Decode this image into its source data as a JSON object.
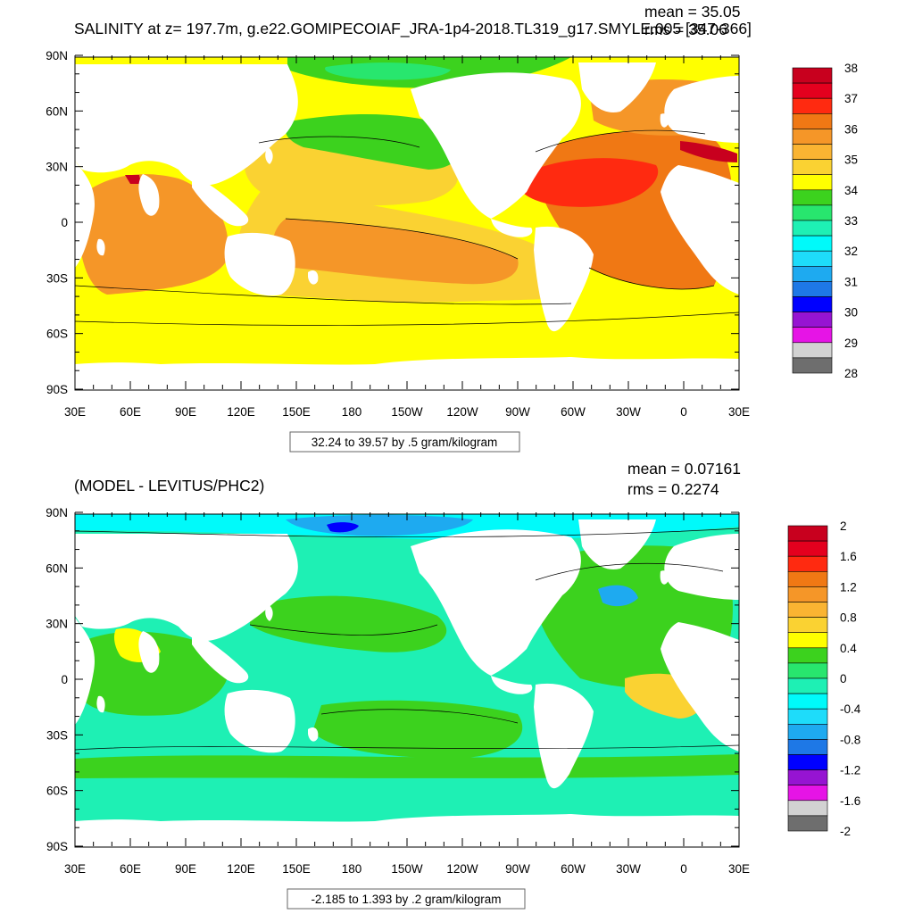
{
  "top_panel": {
    "title": "SALINITY at z= 197.7m, g.e22.GOMIPECOIAF_JRA-1p4-2018.TL319_g17.SMYLE.005 [347-366]",
    "mean_label": "mean = 35.05",
    "rms_label": "rms = 35.06",
    "info_box": "32.24 to 39.57 by .5 gram/kilogram",
    "y_ticks": [
      "90N",
      "60N",
      "30N",
      "0",
      "30S",
      "60S",
      "90S"
    ],
    "x_ticks": [
      "30E",
      "60E",
      "90E",
      "120E",
      "150E",
      "180",
      "150W",
      "120W",
      "90W",
      "60W",
      "30W",
      "0",
      "30E"
    ],
    "colorbar": {
      "labels": [
        "38",
        "37",
        "36",
        "35",
        "34",
        "33",
        "32",
        "31",
        "30",
        "29",
        "28"
      ],
      "colors": [
        "#c8001e",
        "#e4001e",
        "#ff2a10",
        "#f07814",
        "#f59628",
        "#fab432",
        "#fad232",
        "#ffff00",
        "#3cd21e",
        "#28e66e",
        "#1ef0b4",
        "#00fafa",
        "#1edcfa",
        "#1eaaf0",
        "#1e78e6",
        "#0000ff",
        "#9614d2",
        "#e614e6",
        "#d2d2d2",
        "#6e6e6e"
      ]
    }
  },
  "bottom_panel": {
    "title": "(MODEL - LEVITUS/PHC2)",
    "mean_label": "mean = 0.07161",
    "rms_label": "rms = 0.2274",
    "info_box": "-2.185 to 1.393 by .2 gram/kilogram",
    "y_ticks": [
      "90N",
      "60N",
      "30N",
      "0",
      "30S",
      "60S",
      "90S"
    ],
    "x_ticks": [
      "30E",
      "60E",
      "90E",
      "120E",
      "150E",
      "180",
      "150W",
      "120W",
      "90W",
      "60W",
      "30W",
      "0",
      "30E"
    ],
    "colorbar": {
      "labels": [
        "2",
        "1.6",
        "1.2",
        "0.8",
        "0.4",
        "0",
        "-0.4",
        "-0.8",
        "-1.2",
        "-1.6",
        "-2"
      ],
      "colors": [
        "#c8001e",
        "#e4001e",
        "#ff2a10",
        "#f07814",
        "#f59628",
        "#fab432",
        "#fad232",
        "#ffff00",
        "#3cd21e",
        "#28e66e",
        "#1ef0b4",
        "#00fafa",
        "#1edcfa",
        "#1eaaf0",
        "#1e78e6",
        "#0000ff",
        "#9614d2",
        "#e614e6",
        "#d2d2d2",
        "#6e6e6e"
      ]
    }
  }
}
